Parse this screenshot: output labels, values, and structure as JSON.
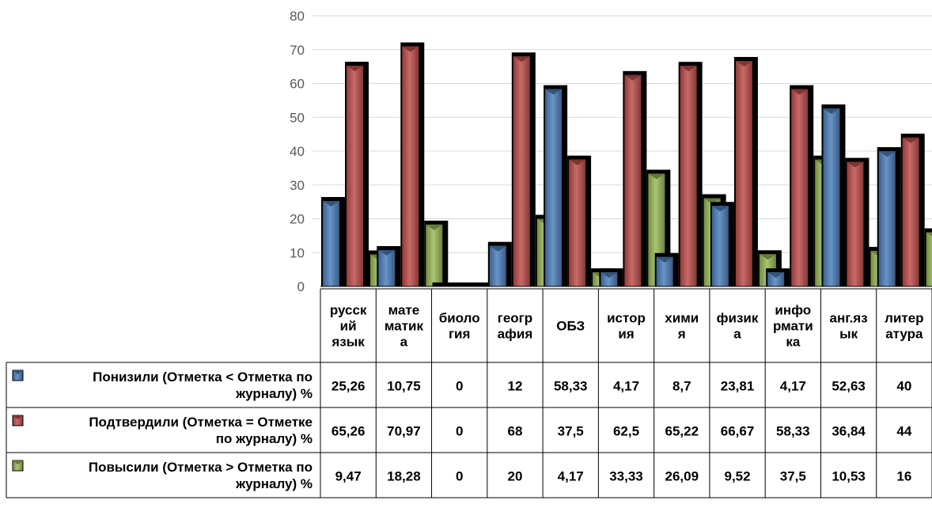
{
  "chart_data": {
    "type": "bar",
    "categories": [
      [
        "русск",
        "ий",
        "язык"
      ],
      [
        "мате",
        "матик",
        "а"
      ],
      [
        "биоло",
        "гия"
      ],
      [
        "геогр",
        "афия"
      ],
      [
        "ОБЗ"
      ],
      [
        "истор",
        "ия"
      ],
      [
        "хими",
        "я"
      ],
      [
        "физик",
        "а"
      ],
      [
        "инфо",
        "рмати",
        "ка"
      ],
      [
        "анг.яз",
        "ык"
      ],
      [
        "литер",
        "атура"
      ]
    ],
    "series": [
      {
        "name": [
          "Понизили (Отметка < Отметка по",
          "журналу) %"
        ],
        "color": "#4F81BD",
        "values": [
          25.26,
          10.75,
          0,
          12,
          58.33,
          4.17,
          8.7,
          23.81,
          4.17,
          52.63,
          40
        ],
        "labels": [
          "25,26",
          "10,75",
          "0",
          "12",
          "58,33",
          "4,17",
          "8,7",
          "23,81",
          "4,17",
          "52,63",
          "40"
        ]
      },
      {
        "name": [
          "Подтвердили (Отметка = Отметке",
          "по журналу) %"
        ],
        "color": "#C0504D",
        "values": [
          65.26,
          70.97,
          0,
          68,
          37.5,
          62.5,
          65.22,
          66.67,
          58.33,
          36.84,
          44
        ],
        "labels": [
          "65,26",
          "70,97",
          "0",
          "68",
          "37,5",
          "62,5",
          "65,22",
          "66,67",
          "58,33",
          "36,84",
          "44"
        ]
      },
      {
        "name": [
          "Повысили (Отметка > Отметка по",
          "журналу) %"
        ],
        "color": "#9BBB59",
        "values": [
          9.47,
          18.28,
          0,
          20,
          4.17,
          33.33,
          26.09,
          9.52,
          37.5,
          10.53,
          16
        ],
        "labels": [
          "9,47",
          "18,28",
          "0",
          "20",
          "4,17",
          "33,33",
          "26,09",
          "9,52",
          "37,5",
          "10,53",
          "16"
        ]
      }
    ],
    "yticks": [
      "0",
      "10",
      "20",
      "30",
      "40",
      "50",
      "60",
      "70",
      "80"
    ],
    "ylim": [
      0,
      80
    ],
    "grid": true,
    "legend": "data-table-left"
  }
}
